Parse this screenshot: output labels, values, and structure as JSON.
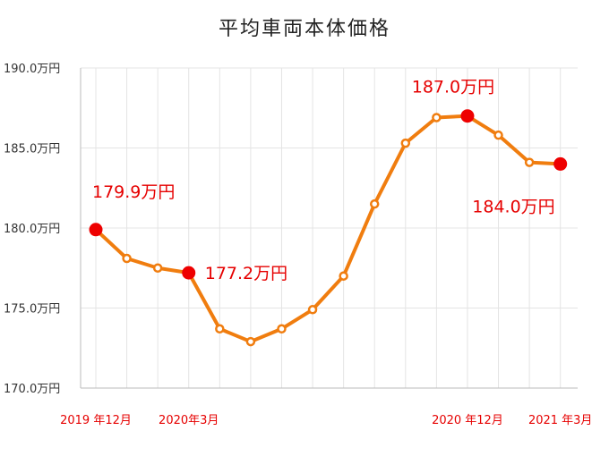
{
  "chart_data": {
    "type": "line",
    "title": "平均車両本体価格",
    "xlabel": "",
    "ylabel": "",
    "ylim": [
      170.0,
      190.0
    ],
    "y_ticks": [
      "170.0万円",
      "175.0万円",
      "180.0万円",
      "185.0万円",
      "190.0万円"
    ],
    "y_tick_values": [
      170.0,
      175.0,
      180.0,
      185.0,
      190.0
    ],
    "x_labels": [
      {
        "index": 0,
        "text": "2019 年12月"
      },
      {
        "index": 3,
        "text": "2020年3月"
      },
      {
        "index": 12,
        "text": "2020 年12月"
      },
      {
        "index": 15,
        "text": "2021 年3月"
      }
    ],
    "grid": true,
    "series": [
      {
        "values": [
          179.9,
          178.1,
          177.5,
          177.2,
          173.7,
          172.9,
          173.7,
          174.9,
          177.0,
          181.5,
          185.3,
          186.9,
          187.0,
          185.8,
          184.1,
          184.0
        ]
      }
    ],
    "highlights": [
      {
        "index": 0,
        "label": "179.9万円"
      },
      {
        "index": 3,
        "label": "177.2万円"
      },
      {
        "index": 12,
        "label": "187.0万円"
      },
      {
        "index": 15,
        "label": "184.0万円"
      }
    ],
    "colors": {
      "line": "#f07d0f",
      "highlight": "#ee0000",
      "label": "#e60000",
      "grid": "#e4e4e4",
      "axis": "#bbbbbb",
      "tick": "#333333"
    }
  }
}
